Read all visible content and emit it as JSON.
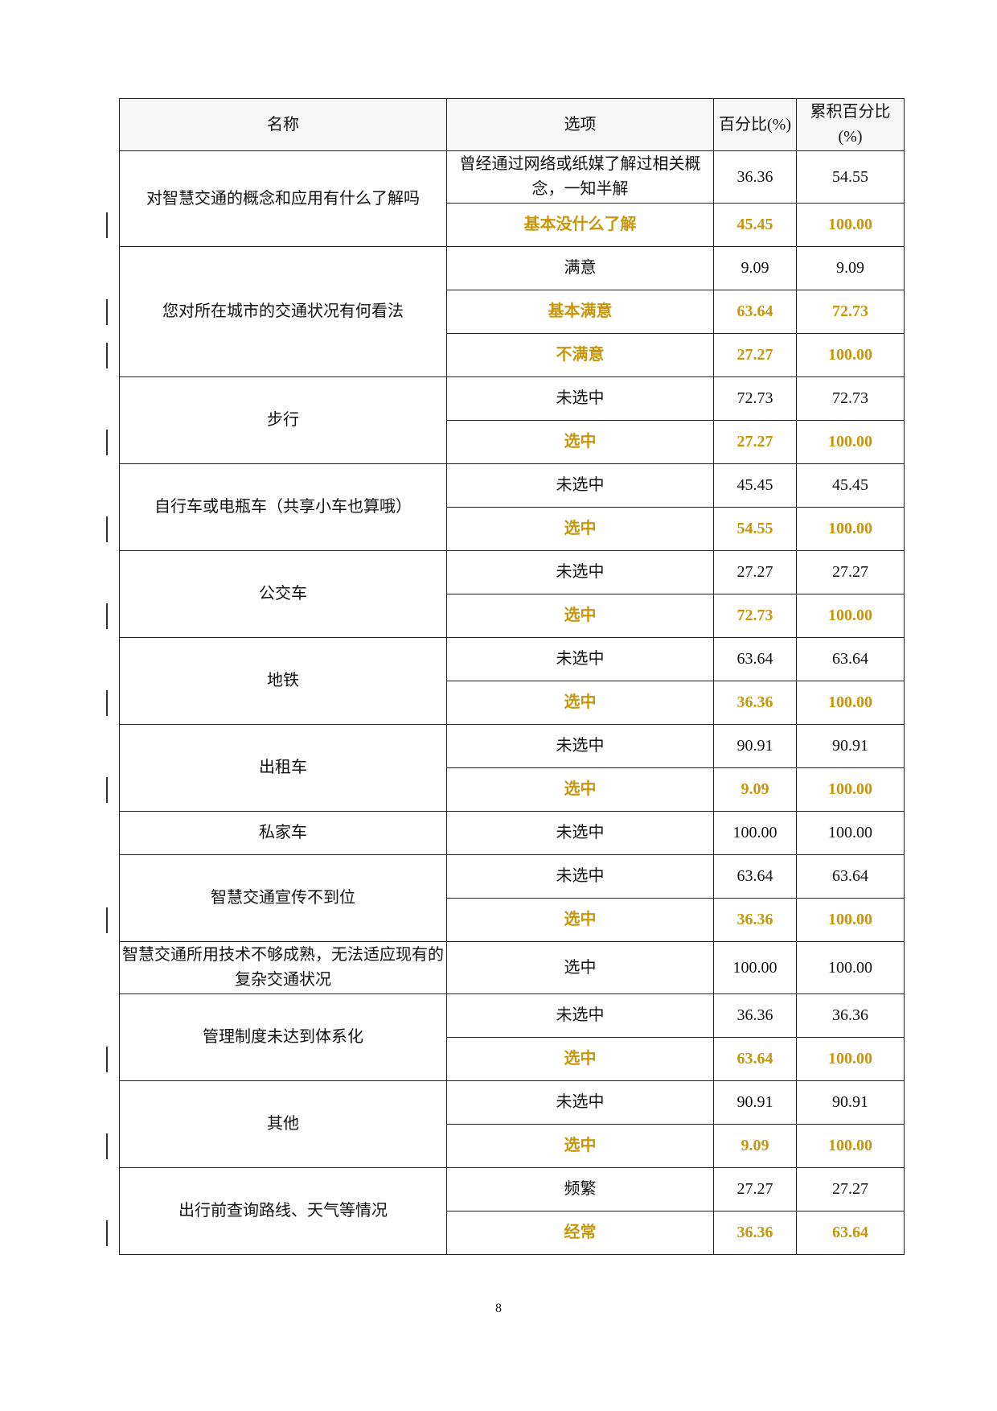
{
  "table": {
    "headers": [
      "名称",
      "选项",
      "百分比(%)",
      "累积百分比(%)"
    ],
    "groups": [
      {
        "name": "对智慧交通的概念和应用有什么了解吗",
        "rows": [
          {
            "option": "曾经通过网络或纸媒了解过相关概念，一知半解",
            "percent": "36.36",
            "cumulative": "54.55",
            "highlight": false
          },
          {
            "option": "基本没什么了解",
            "percent": "45.45",
            "cumulative": "100.00",
            "highlight": true
          }
        ]
      },
      {
        "name": "您对所在城市的交通状况有何看法",
        "rows": [
          {
            "option": "满意",
            "percent": "9.09",
            "cumulative": "9.09",
            "highlight": false
          },
          {
            "option": "基本满意",
            "percent": "63.64",
            "cumulative": "72.73",
            "highlight": true
          },
          {
            "option": "不满意",
            "percent": "27.27",
            "cumulative": "100.00",
            "highlight": true
          }
        ]
      },
      {
        "name": "步行",
        "rows": [
          {
            "option": "未选中",
            "percent": "72.73",
            "cumulative": "72.73",
            "highlight": false
          },
          {
            "option": "选中",
            "percent": "27.27",
            "cumulative": "100.00",
            "highlight": true
          }
        ]
      },
      {
        "name": "自行车或电瓶车（共享小车也算哦）",
        "rows": [
          {
            "option": "未选中",
            "percent": "45.45",
            "cumulative": "45.45",
            "highlight": false
          },
          {
            "option": "选中",
            "percent": "54.55",
            "cumulative": "100.00",
            "highlight": true
          }
        ]
      },
      {
        "name": "公交车",
        "rows": [
          {
            "option": "未选中",
            "percent": "27.27",
            "cumulative": "27.27",
            "highlight": false
          },
          {
            "option": "选中",
            "percent": "72.73",
            "cumulative": "100.00",
            "highlight": true
          }
        ]
      },
      {
        "name": "地铁",
        "rows": [
          {
            "option": "未选中",
            "percent": "63.64",
            "cumulative": "63.64",
            "highlight": false
          },
          {
            "option": "选中",
            "percent": "36.36",
            "cumulative": "100.00",
            "highlight": true
          }
        ]
      },
      {
        "name": "出租车",
        "rows": [
          {
            "option": "未选中",
            "percent": "90.91",
            "cumulative": "90.91",
            "highlight": false
          },
          {
            "option": "选中",
            "percent": "9.09",
            "cumulative": "100.00",
            "highlight": true
          }
        ]
      },
      {
        "name": "私家车",
        "rows": [
          {
            "option": "未选中",
            "percent": "100.00",
            "cumulative": "100.00",
            "highlight": false
          }
        ]
      },
      {
        "name": "智慧交通宣传不到位",
        "rows": [
          {
            "option": "未选中",
            "percent": "63.64",
            "cumulative": "63.64",
            "highlight": false
          },
          {
            "option": "选中",
            "percent": "36.36",
            "cumulative": "100.00",
            "highlight": true
          }
        ]
      },
      {
        "name": "智慧交通所用技术不够成熟，无法适应现有的复杂交通状况",
        "rows": [
          {
            "option": "选中",
            "percent": "100.00",
            "cumulative": "100.00",
            "highlight": false
          }
        ]
      },
      {
        "name": "管理制度未达到体系化",
        "rows": [
          {
            "option": "未选中",
            "percent": "36.36",
            "cumulative": "36.36",
            "highlight": false
          },
          {
            "option": "选中",
            "percent": "63.64",
            "cumulative": "100.00",
            "highlight": true
          }
        ]
      },
      {
        "name": "其他",
        "rows": [
          {
            "option": "未选中",
            "percent": "90.91",
            "cumulative": "90.91",
            "highlight": false
          },
          {
            "option": "选中",
            "percent": "9.09",
            "cumulative": "100.00",
            "highlight": true
          }
        ]
      },
      {
        "name": "出行前查询路线、天气等情况",
        "rows": [
          {
            "option": "频繁",
            "percent": "27.27",
            "cumulative": "27.27",
            "highlight": false
          },
          {
            "option": "经常",
            "percent": "36.36",
            "cumulative": "63.64",
            "highlight": true
          }
        ]
      }
    ]
  },
  "colors": {
    "highlight": "#c8960c"
  },
  "page_number": "8"
}
